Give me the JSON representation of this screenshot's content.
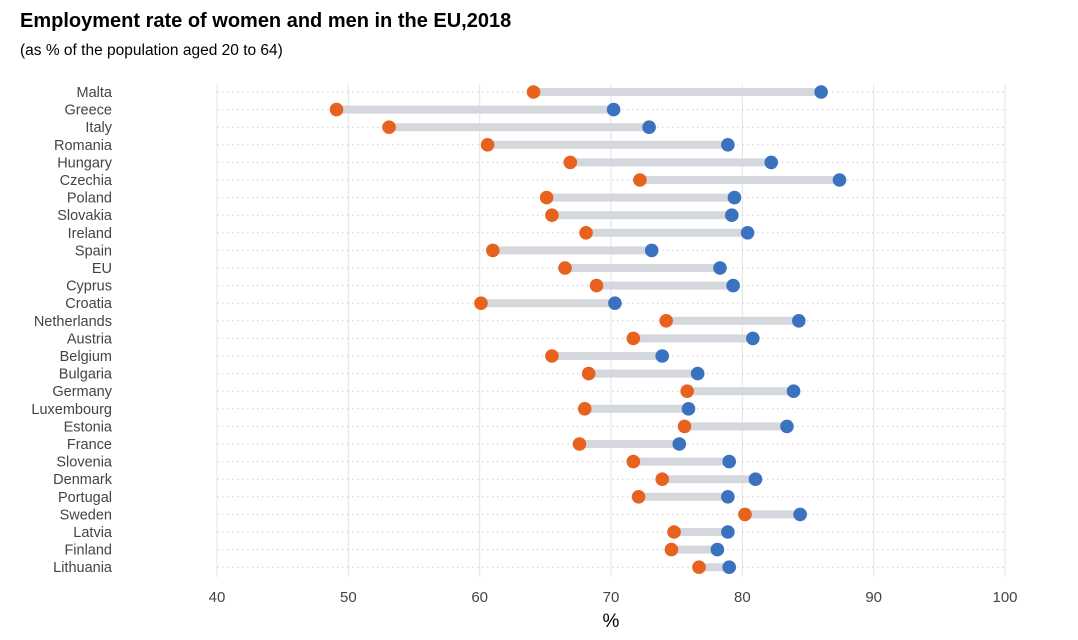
{
  "chart_data": {
    "type": "dumbbell",
    "title": "Employment rate of women and men in the EU,2018",
    "subtitle": "(as % of the population aged 20 to 64)",
    "xlabel": "%",
    "ylabel": "",
    "xlim": [
      40,
      100
    ],
    "xticks": [
      "40",
      "50",
      "60",
      "70",
      "80",
      "90",
      "100"
    ],
    "grid": true,
    "colors": {
      "women": "#e8621f",
      "men": "#3a72c0",
      "connector": "#d4d8dd",
      "grid_major": "#e3e3e3",
      "grid_minor": "#cfcfcf"
    },
    "categories": [
      "Malta",
      "Greece",
      "Italy",
      "Romania",
      "Hungary",
      "Czechia",
      "Poland",
      "Slovakia",
      "Ireland",
      "Spain",
      "EU",
      "Cyprus",
      "Croatia",
      "Netherlands",
      "Austria",
      "Belgium",
      "Bulgaria",
      "Germany",
      "Luxembourg",
      "Estonia",
      "France",
      "Slovenia",
      "Denmark",
      "Portugal",
      "Sweden",
      "Latvia",
      "Finland",
      "Lithuania"
    ],
    "women": [
      64.1,
      49.1,
      53.1,
      60.6,
      66.9,
      72.2,
      65.1,
      65.5,
      68.1,
      61.0,
      66.5,
      68.9,
      60.1,
      74.2,
      71.7,
      65.5,
      68.3,
      75.8,
      68.0,
      75.6,
      67.6,
      71.7,
      73.9,
      72.1,
      80.2,
      74.8,
      74.6,
      76.7
    ],
    "men": [
      86.0,
      70.2,
      72.9,
      78.9,
      82.2,
      87.4,
      79.4,
      79.2,
      80.4,
      73.1,
      78.3,
      79.3,
      70.3,
      84.3,
      80.8,
      73.9,
      76.6,
      83.9,
      75.9,
      83.4,
      75.2,
      79.0,
      81.0,
      78.9,
      84.4,
      78.9,
      78.1,
      79.0
    ]
  }
}
